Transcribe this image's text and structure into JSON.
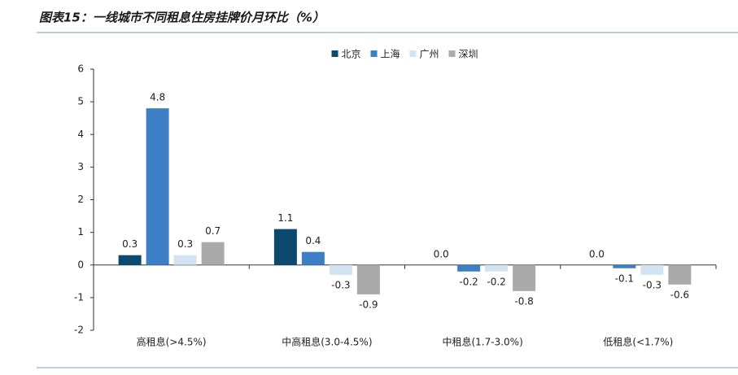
{
  "chart_data": {
    "type": "bar",
    "title": "图表15：一线城市不同租息住房挂牌价月环比（%）",
    "categories": [
      "高租息(>4.5%)",
      "中高租息(3.0-4.5%)",
      "中租息(1.7-3.0%)",
      "低租息(<1.7%)"
    ],
    "series": [
      {
        "name": "北京",
        "color": "#0b4a6e",
        "values": [
          0.3,
          1.1,
          0.0,
          0.0
        ],
        "value_labels": [
          "0.3",
          "1.1",
          "0.0",
          "0.0"
        ]
      },
      {
        "name": "上海",
        "color": "#3d7fc4",
        "values": [
          4.8,
          0.4,
          -0.2,
          -0.1
        ],
        "value_labels": [
          "4.8",
          "0.4",
          "-0.2",
          "-0.1"
        ]
      },
      {
        "name": "广州",
        "color": "#d3e3f3",
        "values": [
          0.3,
          -0.3,
          -0.2,
          -0.3
        ],
        "value_labels": [
          "0.3",
          "-0.3",
          "-0.2",
          "-0.3"
        ]
      },
      {
        "name": "深圳",
        "color": "#aaaaaa",
        "values": [
          0.7,
          -0.9,
          -0.8,
          -0.6
        ],
        "value_labels": [
          "0.7",
          "-0.9",
          "-0.8",
          "-0.6"
        ]
      }
    ],
    "ylim": [
      -2,
      6
    ],
    "yticks": [
      -2,
      -1,
      0,
      1,
      2,
      3,
      4,
      5,
      6
    ],
    "legend": "top",
    "grid": false
  }
}
